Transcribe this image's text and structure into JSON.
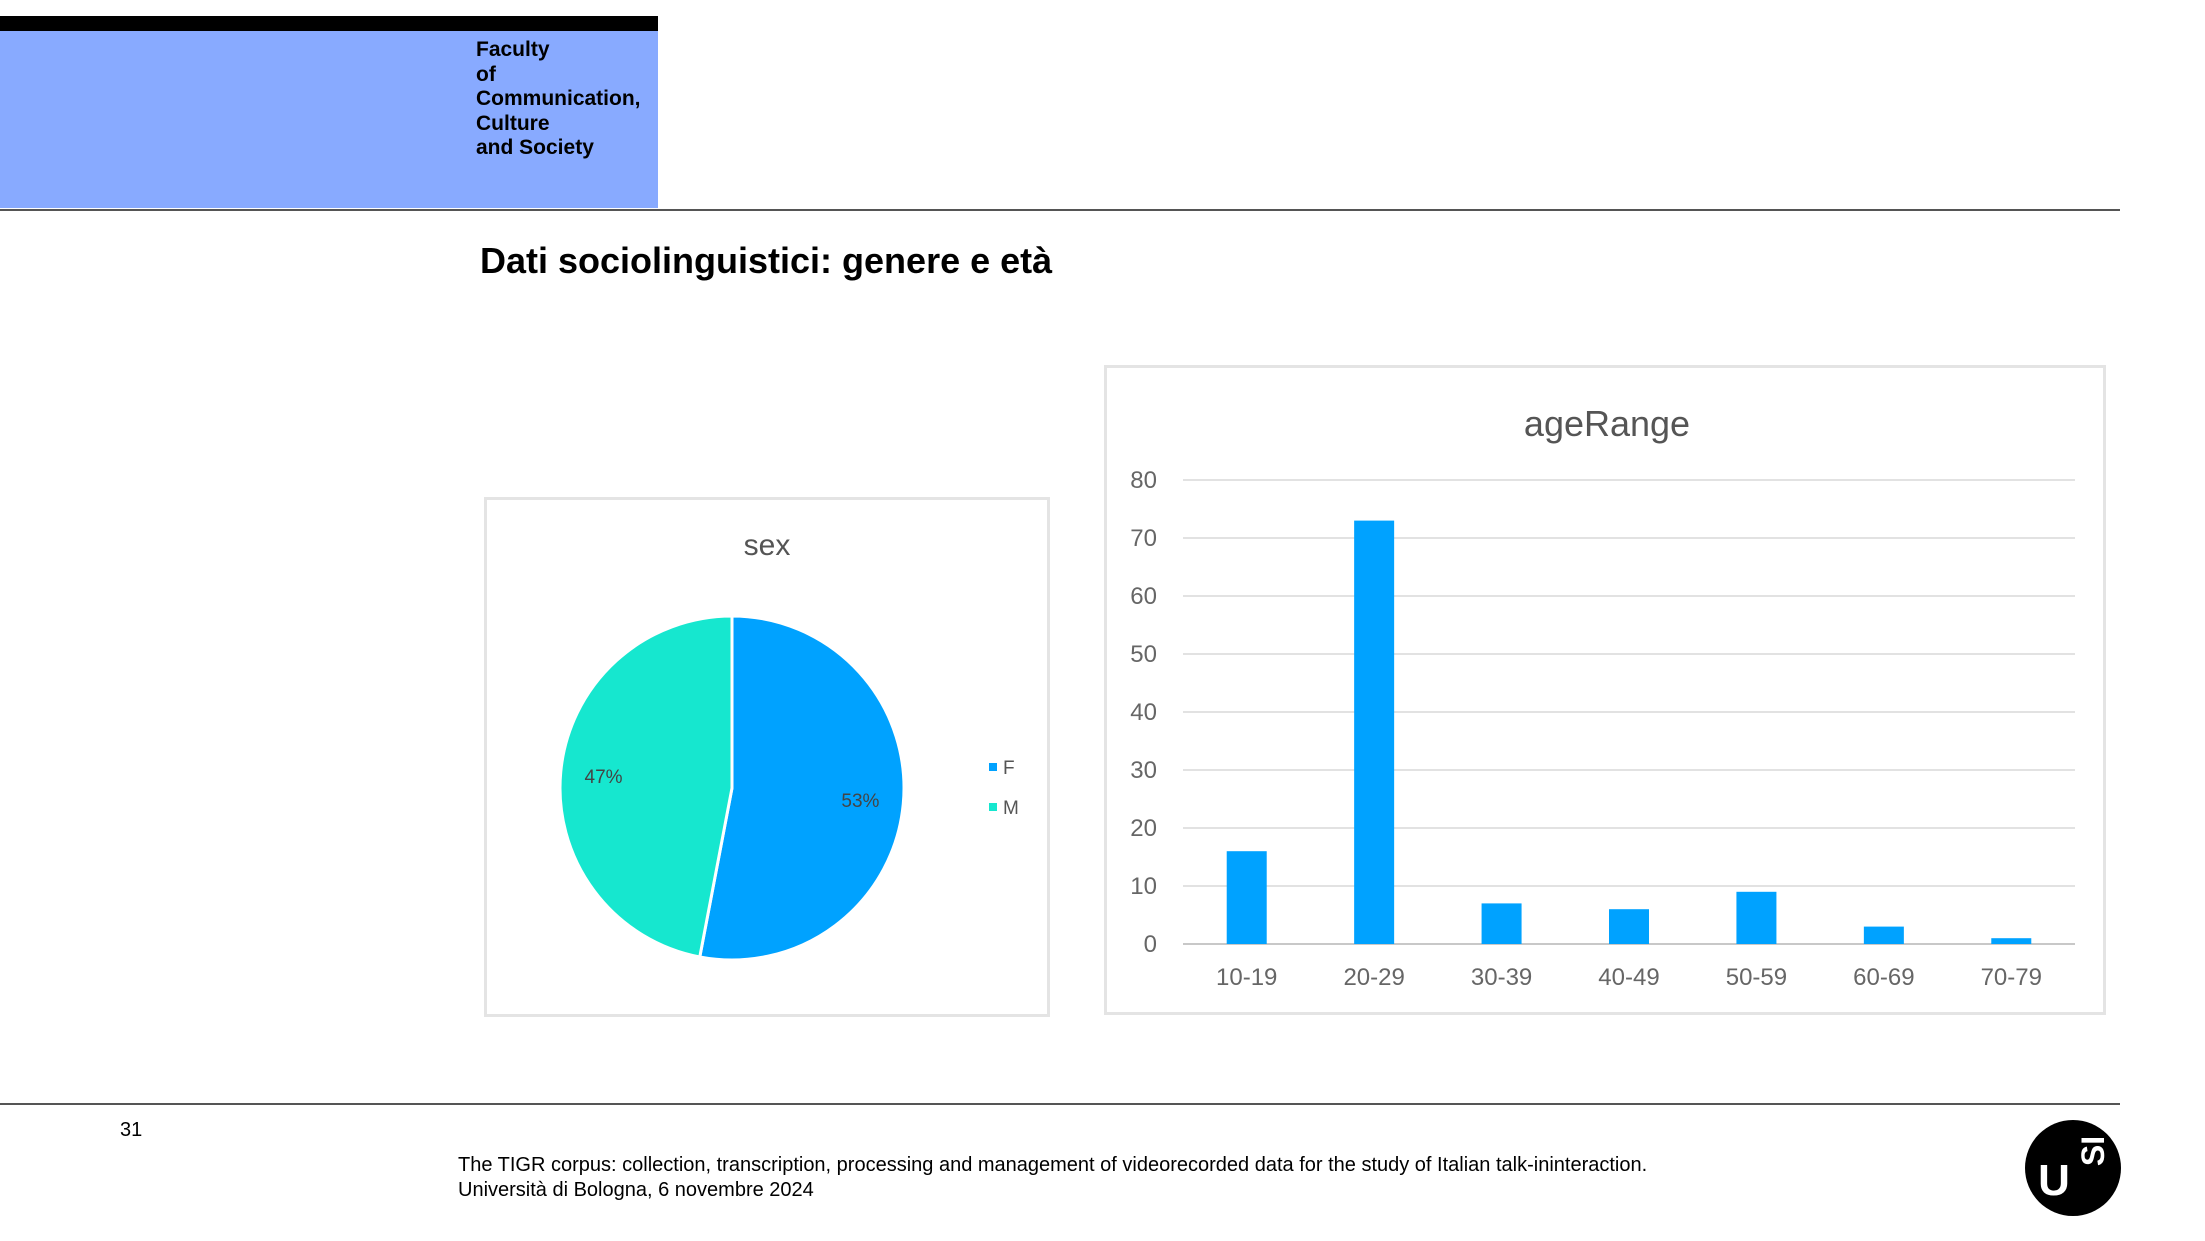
{
  "header": {
    "faculty_lines": [
      "Faculty",
      "of",
      "Communication,",
      "Culture",
      "and Society"
    ],
    "colors": {
      "header_box": "#88aaff",
      "header_bar": "#000000"
    }
  },
  "slide": {
    "title": "Dati sociolinguistici: genere e età",
    "page_number": "31"
  },
  "footer": {
    "line1": "The TIGR corpus: collection, transcription, processing and management of videorecorded data for the study of Italian talk-ininteraction.",
    "line2": "Università di Bologna, 6 novembre 2024"
  },
  "logo": {
    "icon": "usi-logo-icon",
    "text_u": "U",
    "text_si": "SI"
  },
  "chart_data": [
    {
      "type": "pie",
      "title": "sex",
      "categories": [
        "F",
        "M"
      ],
      "values": [
        53,
        47
      ],
      "labels": [
        "53%",
        "47%"
      ],
      "colors": [
        "#00a2ff",
        "#16e7cf"
      ],
      "legend": "right"
    },
    {
      "type": "bar",
      "title": "ageRange",
      "categories": [
        "10-19",
        "20-29",
        "30-39",
        "40-49",
        "50-59",
        "60-69",
        "70-79"
      ],
      "values": [
        16,
        73,
        7,
        6,
        9,
        3,
        1
      ],
      "ylim": [
        0,
        80
      ],
      "yticks": [
        "0",
        "10",
        "20",
        "30",
        "40",
        "50",
        "60",
        "70",
        "80"
      ],
      "grid": true,
      "color": "#00a2ff"
    }
  ]
}
